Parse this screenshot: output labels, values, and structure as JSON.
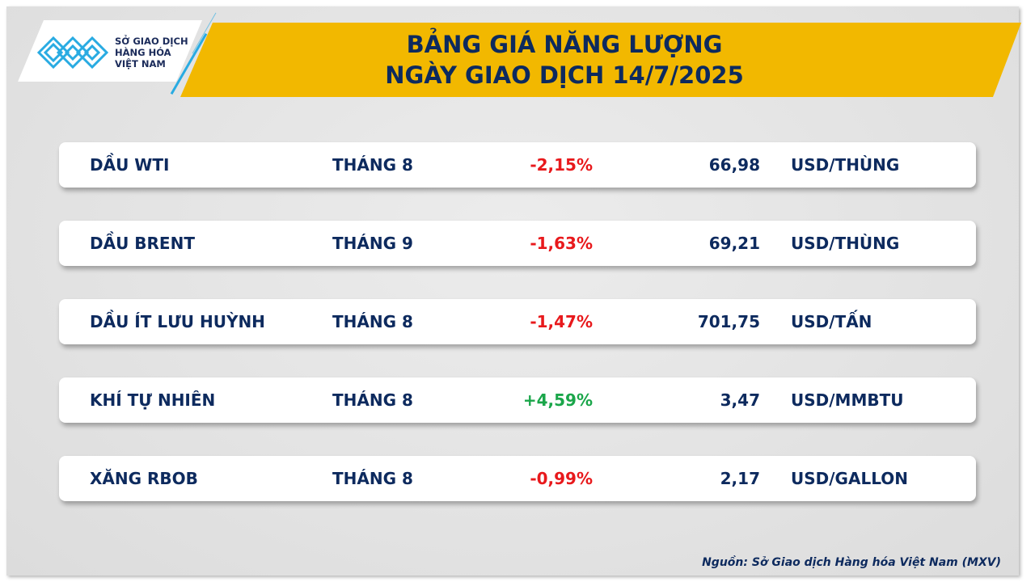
{
  "logo": {
    "text": [
      "SỞ GIAO DỊCH",
      "HÀNG HÓA",
      "VIỆT NAM"
    ],
    "accent": "#29abe2"
  },
  "header": {
    "title_line1": "BẢNG GIÁ NĂNG LƯỢNG",
    "title_line2": "NGÀY GIAO DỊCH 14/7/2025",
    "banner_color": "#f2b800"
  },
  "rows": [
    {
      "name": "DẦU WTI",
      "month": "THÁNG 8",
      "change": "-2,15%",
      "price": "66,98",
      "unit": "USD/THÙNG"
    },
    {
      "name": "DẦU BRENT",
      "month": "THÁNG 9",
      "change": "-1,63%",
      "price": "69,21",
      "unit": "USD/THÙNG"
    },
    {
      "name": "DẦU ÍT LƯU HUỲNH",
      "month": "THÁNG 8",
      "change": "-1,47%",
      "price": "701,75",
      "unit": "USD/TẤN"
    },
    {
      "name": "KHÍ TỰ NHIÊN",
      "month": "THÁNG 8",
      "change": "+4,59%",
      "price": "3,47",
      "unit": "USD/MMBTU"
    },
    {
      "name": "XĂNG RBOB",
      "month": "THÁNG 8",
      "change": "-0,99%",
      "price": "2,17",
      "unit": "USD/GALLON"
    }
  ],
  "colors": {
    "negative": "#e8191c",
    "positive": "#1aa64a",
    "text": "#0d2a5e"
  },
  "source": "Nguồn: Sở Giao dịch Hàng hóa Việt Nam (MXV)"
}
